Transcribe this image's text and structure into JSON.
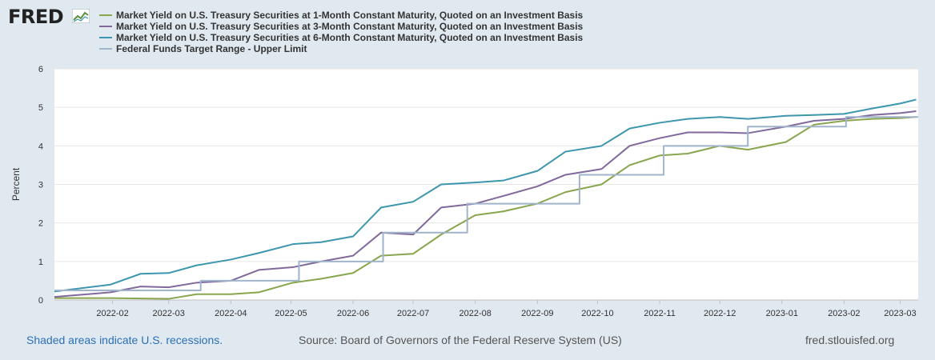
{
  "header": {
    "logo_text": "FRED",
    "logo_icon": "fred-chart-icon"
  },
  "footer": {
    "recession_note": "Shaded areas indicate U.S. recessions.",
    "source": "Source: Board of Governors of the Federal Reserve System (US)",
    "site": "fred.stlouisfed.org"
  },
  "colors": {
    "background": "#e1e9f0",
    "plot_background": "#ffffff",
    "series_1m": "#89a54e",
    "series_3m": "#80699b",
    "series_6m": "#3d96ae",
    "series_fftr": "#a0b4cc"
  },
  "chart_data": {
    "type": "line",
    "title": "",
    "xlabel": "",
    "ylabel": "Percent",
    "ylim": [
      0,
      6
    ],
    "yticks": [
      "0",
      "1",
      "2",
      "3",
      "4",
      "5",
      "6"
    ],
    "xlim": [
      "2022-01-03",
      "2023-03-10"
    ],
    "xticks": [
      "2022-02",
      "2022-03",
      "2022-04",
      "2022-05",
      "2022-06",
      "2022-07",
      "2022-08",
      "2022-09",
      "2022-10",
      "2022-11",
      "2022-12",
      "2023-01",
      "2023-02",
      "2023-03"
    ],
    "series": [
      {
        "name": "Market Yield on U.S. Treasury Securities at 1-Month Constant Maturity, Quoted on an Investment Basis",
        "color": "#89a54e",
        "points": [
          [
            "2022-01-03",
            0.05
          ],
          [
            "2022-01-31",
            0.05
          ],
          [
            "2022-02-15",
            0.04
          ],
          [
            "2022-03-01",
            0.03
          ],
          [
            "2022-03-15",
            0.15
          ],
          [
            "2022-04-01",
            0.15
          ],
          [
            "2022-04-15",
            0.2
          ],
          [
            "2022-05-02",
            0.45
          ],
          [
            "2022-05-16",
            0.55
          ],
          [
            "2022-06-01",
            0.7
          ],
          [
            "2022-06-15",
            1.15
          ],
          [
            "2022-07-01",
            1.2
          ],
          [
            "2022-07-15",
            1.7
          ],
          [
            "2022-08-01",
            2.2
          ],
          [
            "2022-08-15",
            2.3
          ],
          [
            "2022-09-01",
            2.5
          ],
          [
            "2022-09-15",
            2.8
          ],
          [
            "2022-10-03",
            3.0
          ],
          [
            "2022-10-17",
            3.5
          ],
          [
            "2022-11-01",
            3.75
          ],
          [
            "2022-11-15",
            3.8
          ],
          [
            "2022-12-01",
            4.0
          ],
          [
            "2022-12-15",
            3.9
          ],
          [
            "2023-01-03",
            4.1
          ],
          [
            "2023-01-17",
            4.55
          ],
          [
            "2023-02-01",
            4.65
          ],
          [
            "2023-02-15",
            4.7
          ],
          [
            "2023-03-01",
            4.72
          ],
          [
            "2023-03-09",
            4.75
          ]
        ]
      },
      {
        "name": "Market Yield on U.S. Treasury Securities at 3-Month Constant Maturity, Quoted on an Investment Basis",
        "color": "#80699b",
        "points": [
          [
            "2022-01-03",
            0.08
          ],
          [
            "2022-01-31",
            0.2
          ],
          [
            "2022-02-15",
            0.35
          ],
          [
            "2022-03-01",
            0.33
          ],
          [
            "2022-03-15",
            0.45
          ],
          [
            "2022-04-01",
            0.5
          ],
          [
            "2022-04-15",
            0.78
          ],
          [
            "2022-05-02",
            0.85
          ],
          [
            "2022-05-16",
            1.0
          ],
          [
            "2022-06-01",
            1.15
          ],
          [
            "2022-06-15",
            1.75
          ],
          [
            "2022-07-01",
            1.7
          ],
          [
            "2022-07-15",
            2.4
          ],
          [
            "2022-08-01",
            2.5
          ],
          [
            "2022-08-15",
            2.7
          ],
          [
            "2022-09-01",
            2.95
          ],
          [
            "2022-09-15",
            3.25
          ],
          [
            "2022-10-03",
            3.4
          ],
          [
            "2022-10-17",
            4.0
          ],
          [
            "2022-11-01",
            4.2
          ],
          [
            "2022-11-15",
            4.35
          ],
          [
            "2022-12-01",
            4.35
          ],
          [
            "2022-12-15",
            4.33
          ],
          [
            "2023-01-03",
            4.5
          ],
          [
            "2023-01-17",
            4.65
          ],
          [
            "2023-02-01",
            4.7
          ],
          [
            "2023-02-15",
            4.8
          ],
          [
            "2023-03-01",
            4.85
          ],
          [
            "2023-03-09",
            4.9
          ]
        ]
      },
      {
        "name": "Market Yield on U.S. Treasury Securities at 6-Month Constant Maturity, Quoted on an Investment Basis",
        "color": "#3d96ae",
        "points": [
          [
            "2022-01-03",
            0.22
          ],
          [
            "2022-01-31",
            0.4
          ],
          [
            "2022-02-15",
            0.68
          ],
          [
            "2022-03-01",
            0.7
          ],
          [
            "2022-03-15",
            0.9
          ],
          [
            "2022-04-01",
            1.05
          ],
          [
            "2022-04-15",
            1.22
          ],
          [
            "2022-05-02",
            1.45
          ],
          [
            "2022-05-16",
            1.5
          ],
          [
            "2022-06-01",
            1.65
          ],
          [
            "2022-06-15",
            2.4
          ],
          [
            "2022-07-01",
            2.55
          ],
          [
            "2022-07-15",
            3.0
          ],
          [
            "2022-08-01",
            3.05
          ],
          [
            "2022-08-15",
            3.1
          ],
          [
            "2022-09-01",
            3.35
          ],
          [
            "2022-09-15",
            3.85
          ],
          [
            "2022-10-03",
            4.0
          ],
          [
            "2022-10-17",
            4.45
          ],
          [
            "2022-11-01",
            4.6
          ],
          [
            "2022-11-15",
            4.7
          ],
          [
            "2022-12-01",
            4.75
          ],
          [
            "2022-12-15",
            4.7
          ],
          [
            "2023-01-03",
            4.78
          ],
          [
            "2023-01-17",
            4.8
          ],
          [
            "2023-02-01",
            4.83
          ],
          [
            "2023-02-15",
            4.97
          ],
          [
            "2023-03-01",
            5.1
          ],
          [
            "2023-03-09",
            5.2
          ]
        ]
      },
      {
        "name": "Federal Funds Target Range - Upper Limit",
        "color": "#a0b4cc",
        "step": true,
        "points": [
          [
            "2022-01-03",
            0.25
          ],
          [
            "2022-03-17",
            0.5
          ],
          [
            "2022-05-05",
            1.0
          ],
          [
            "2022-06-16",
            1.75
          ],
          [
            "2022-07-28",
            2.5
          ],
          [
            "2022-09-22",
            3.25
          ],
          [
            "2022-11-03",
            4.0
          ],
          [
            "2022-12-15",
            4.5
          ],
          [
            "2023-02-02",
            4.75
          ],
          [
            "2023-03-10",
            4.75
          ]
        ]
      }
    ]
  }
}
